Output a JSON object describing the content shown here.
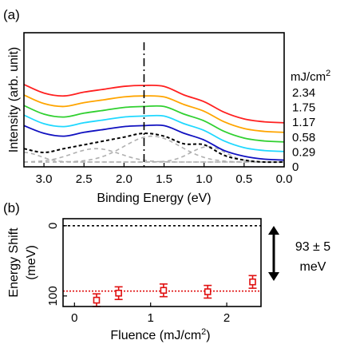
{
  "panel_a": {
    "label": "(a)",
    "chart_data": {
      "type": "line",
      "xlabel": "Binding Energy (eV)",
      "ylabel": "Intensity (arb. unit)",
      "xlim": [
        3.25,
        0.0
      ],
      "x_reversed": true,
      "xticks": [
        3.0,
        2.5,
        2.0,
        1.5,
        1.0,
        0.5,
        0.0
      ],
      "xtick_labels": [
        "3.0",
        "2.5",
        "2.0",
        "1.5",
        "1.0",
        "0.5",
        "0.0"
      ],
      "legend_title": "mJ/cm",
      "legend_title_sup": "2",
      "marker_line_x": 1.75,
      "x": [
        3.25,
        3.0,
        2.75,
        2.5,
        2.25,
        2.0,
        1.75,
        1.5,
        1.25,
        1.0,
        0.75,
        0.5,
        0.25,
        0.0
      ],
      "series": [
        {
          "name": "2.34",
          "color": "#ff2020",
          "values": [
            0.81,
            0.72,
            0.69,
            0.73,
            0.76,
            0.79,
            0.8,
            0.79,
            0.7,
            0.63,
            0.52,
            0.45,
            0.42,
            0.41
          ]
        },
        {
          "name": "1.75",
          "color": "#ffa500",
          "values": [
            0.7,
            0.61,
            0.58,
            0.62,
            0.65,
            0.68,
            0.69,
            0.68,
            0.6,
            0.53,
            0.42,
            0.35,
            0.32,
            0.31
          ]
        },
        {
          "name": "1.17",
          "color": "#30d030",
          "values": [
            0.59,
            0.5,
            0.47,
            0.51,
            0.54,
            0.57,
            0.58,
            0.58,
            0.5,
            0.43,
            0.32,
            0.25,
            0.22,
            0.21
          ]
        },
        {
          "name": "0.58",
          "color": "#20d8ff",
          "values": [
            0.49,
            0.4,
            0.37,
            0.41,
            0.44,
            0.47,
            0.48,
            0.48,
            0.4,
            0.33,
            0.22,
            0.15,
            0.12,
            0.11
          ]
        },
        {
          "name": "0.29",
          "color": "#1010c0",
          "values": [
            0.38,
            0.3,
            0.27,
            0.31,
            0.34,
            0.37,
            0.38,
            0.38,
            0.3,
            0.23,
            0.12,
            0.06,
            0.03,
            0.02
          ]
        },
        {
          "name": "0",
          "color": "#000000",
          "dashed": true,
          "values": [
            0.14,
            0.1,
            0.14,
            0.18,
            0.22,
            0.26,
            0.3,
            0.27,
            0.19,
            0.18,
            0.07,
            0.02,
            0.0,
            0.0
          ]
        }
      ],
      "components": [
        {
          "center": 2.35,
          "amp": 0.14,
          "width": 0.3
        },
        {
          "center": 1.65,
          "amp": 0.27,
          "width": 0.35
        },
        {
          "center": 0.95,
          "amp": 0.16,
          "width": 0.22
        },
        {
          "center": 3.25,
          "amp": 0.1,
          "width": 0.2
        }
      ],
      "component_color": "#b0b0b0"
    }
  },
  "panel_b": {
    "label": "(b)",
    "chart_data": {
      "type": "scatter",
      "xlabel": "Fluence (mJ/cm",
      "xlabel_sup": "2",
      "xlabel_end": ")",
      "ylabel": "Energy Shift",
      "ylabel_unit": "(meV)",
      "xlim": [
        -0.15,
        2.45
      ],
      "ylim": [
        115,
        -10
      ],
      "y_reversed": true,
      "xticks": [
        0,
        1,
        2
      ],
      "xtick_labels": [
        "0",
        "1",
        "2"
      ],
      "yticks": [
        0,
        100
      ],
      "ytick_labels": [
        "0",
        "100"
      ],
      "reference_line_y": 0,
      "fit_line_y": 93,
      "fit_line_color": "#e01010",
      "marker_color": "#e01010",
      "points": [
        {
          "x": 0.29,
          "y": 106,
          "err": 9
        },
        {
          "x": 0.58,
          "y": 96,
          "err": 9
        },
        {
          "x": 1.17,
          "y": 92,
          "err": 9
        },
        {
          "x": 1.75,
          "y": 94,
          "err": 9
        },
        {
          "x": 2.34,
          "y": 80,
          "err": 9
        }
      ],
      "annotation_value": "93 ± 5",
      "annotation_unit": "meV"
    }
  }
}
